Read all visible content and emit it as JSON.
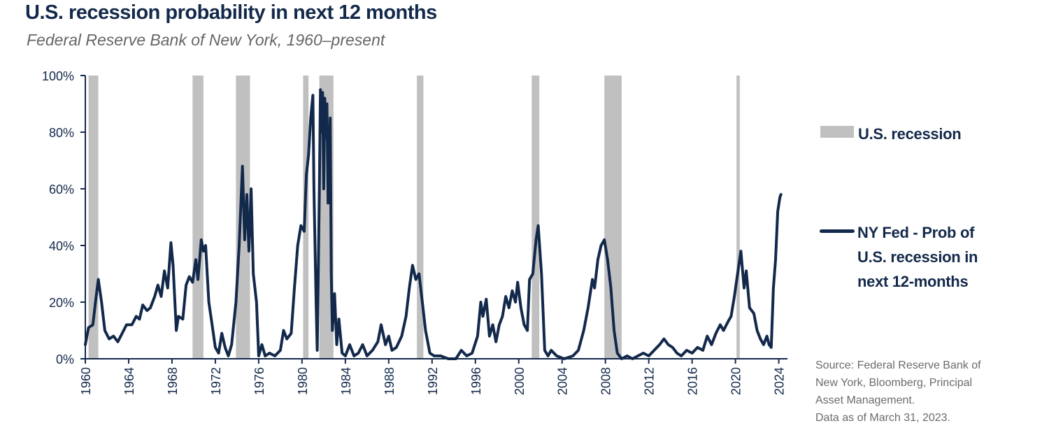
{
  "title": "U.S. recession probability in next 12 months",
  "subtitle": "Federal Reserve Bank of New York, 1960–present",
  "legend": {
    "recession_label": "U.S. recession",
    "series_label_lines": [
      "NY Fed - Prob of",
      "U.S. recession in",
      "next 12-months"
    ]
  },
  "source_lines": [
    "Source: Federal Reserve Bank of",
    "New York, Bloomberg, Principal",
    "Asset Management.",
    "Data as of March 31, 2023."
  ],
  "colors": {
    "line": "#13294b",
    "recession": "#c0c0c0",
    "text": "#13294b",
    "source_text": "#6b6b6b"
  },
  "chart_data": {
    "type": "line",
    "xlim": [
      1960,
      2024.8
    ],
    "ylim": [
      0,
      100
    ],
    "x_ticks": [
      1960,
      1964,
      1968,
      1972,
      1976,
      1980,
      1984,
      1988,
      1992,
      1996,
      2000,
      2004,
      2008,
      2012,
      2016,
      2020,
      2024
    ],
    "y_ticks": [
      0,
      20,
      40,
      60,
      80,
      100
    ],
    "y_tick_labels": [
      "0%",
      "20%",
      "40%",
      "60%",
      "80%",
      "100%"
    ],
    "grid": false,
    "legend_position": "right",
    "recessions": [
      [
        1960.3,
        1961.2
      ],
      [
        1969.9,
        1970.9
      ],
      [
        1973.9,
        1975.2
      ],
      [
        1980.1,
        1980.6
      ],
      [
        1981.6,
        1982.9
      ],
      [
        1990.6,
        1991.2
      ],
      [
        2001.2,
        2001.9
      ],
      [
        2007.9,
        2009.5
      ],
      [
        2020.1,
        2020.4
      ]
    ],
    "series": [
      {
        "name": "NY Fed - Prob of U.S. recession in next 12-months",
        "points": [
          [
            1960.0,
            5
          ],
          [
            1960.3,
            11
          ],
          [
            1960.7,
            12
          ],
          [
            1961.0,
            22
          ],
          [
            1961.2,
            28
          ],
          [
            1961.5,
            20
          ],
          [
            1961.8,
            10
          ],
          [
            1962.2,
            7
          ],
          [
            1962.6,
            8
          ],
          [
            1963.0,
            6
          ],
          [
            1963.4,
            9
          ],
          [
            1963.8,
            12
          ],
          [
            1964.3,
            12
          ],
          [
            1964.7,
            15
          ],
          [
            1965.0,
            14
          ],
          [
            1965.3,
            19
          ],
          [
            1965.7,
            17
          ],
          [
            1966.0,
            18
          ],
          [
            1966.4,
            22
          ],
          [
            1966.7,
            26
          ],
          [
            1967.0,
            22
          ],
          [
            1967.3,
            31
          ],
          [
            1967.6,
            25
          ],
          [
            1967.9,
            41
          ],
          [
            1968.1,
            33
          ],
          [
            1968.4,
            10
          ],
          [
            1968.6,
            15
          ],
          [
            1969.0,
            14
          ],
          [
            1969.3,
            26
          ],
          [
            1969.6,
            29
          ],
          [
            1969.9,
            27
          ],
          [
            1970.2,
            35
          ],
          [
            1970.4,
            28
          ],
          [
            1970.7,
            42
          ],
          [
            1970.9,
            38
          ],
          [
            1971.1,
            40
          ],
          [
            1971.4,
            20
          ],
          [
            1971.7,
            12
          ],
          [
            1972.0,
            4
          ],
          [
            1972.3,
            2
          ],
          [
            1972.6,
            9
          ],
          [
            1972.9,
            4
          ],
          [
            1973.2,
            1
          ],
          [
            1973.5,
            5
          ],
          [
            1973.9,
            20
          ],
          [
            1974.2,
            40
          ],
          [
            1974.5,
            68
          ],
          [
            1974.7,
            42
          ],
          [
            1974.9,
            58
          ],
          [
            1975.1,
            38
          ],
          [
            1975.3,
            60
          ],
          [
            1975.5,
            30
          ],
          [
            1975.8,
            20
          ],
          [
            1976.0,
            1
          ],
          [
            1976.3,
            5
          ],
          [
            1976.6,
            1
          ],
          [
            1977.0,
            2
          ],
          [
            1977.5,
            1
          ],
          [
            1978.0,
            3
          ],
          [
            1978.3,
            10
          ],
          [
            1978.6,
            7
          ],
          [
            1979.0,
            9
          ],
          [
            1979.3,
            25
          ],
          [
            1979.6,
            40
          ],
          [
            1979.9,
            47
          ],
          [
            1980.2,
            45
          ],
          [
            1980.4,
            65
          ],
          [
            1980.6,
            72
          ],
          [
            1980.8,
            85
          ],
          [
            1981.0,
            93
          ],
          [
            1981.1,
            60
          ],
          [
            1981.3,
            20
          ],
          [
            1981.4,
            3
          ],
          [
            1981.6,
            60
          ],
          [
            1981.7,
            95
          ],
          [
            1981.8,
            80
          ],
          [
            1981.9,
            94
          ],
          [
            1982.0,
            60
          ],
          [
            1982.1,
            92
          ],
          [
            1982.2,
            78
          ],
          [
            1982.3,
            90
          ],
          [
            1982.4,
            55
          ],
          [
            1982.6,
            85
          ],
          [
            1982.7,
            30
          ],
          [
            1982.8,
            10
          ],
          [
            1983.0,
            23
          ],
          [
            1983.2,
            5
          ],
          [
            1983.4,
            14
          ],
          [
            1983.7,
            2
          ],
          [
            1984.0,
            1
          ],
          [
            1984.4,
            5
          ],
          [
            1984.8,
            1
          ],
          [
            1985.2,
            2
          ],
          [
            1985.6,
            5
          ],
          [
            1986.0,
            1
          ],
          [
            1986.5,
            3
          ],
          [
            1987.0,
            6
          ],
          [
            1987.3,
            12
          ],
          [
            1987.7,
            5
          ],
          [
            1988.0,
            8
          ],
          [
            1988.3,
            3
          ],
          [
            1988.7,
            4
          ],
          [
            1989.2,
            8
          ],
          [
            1989.6,
            15
          ],
          [
            1989.9,
            25
          ],
          [
            1990.2,
            33
          ],
          [
            1990.5,
            28
          ],
          [
            1990.8,
            30
          ],
          [
            1991.1,
            20
          ],
          [
            1991.4,
            10
          ],
          [
            1991.8,
            2
          ],
          [
            1992.2,
            1
          ],
          [
            1992.8,
            1
          ],
          [
            1993.5,
            0
          ],
          [
            1994.2,
            0
          ],
          [
            1994.7,
            3
          ],
          [
            1995.2,
            1
          ],
          [
            1995.7,
            2
          ],
          [
            1996.2,
            8
          ],
          [
            1996.5,
            20
          ],
          [
            1996.7,
            15
          ],
          [
            1997.0,
            21
          ],
          [
            1997.3,
            8
          ],
          [
            1997.6,
            12
          ],
          [
            1997.9,
            6
          ],
          [
            1998.2,
            12
          ],
          [
            1998.5,
            15
          ],
          [
            1998.8,
            22
          ],
          [
            1999.1,
            18
          ],
          [
            1999.4,
            24
          ],
          [
            1999.7,
            20
          ],
          [
            1999.9,
            27
          ],
          [
            2000.2,
            18
          ],
          [
            2000.5,
            12
          ],
          [
            2000.8,
            10
          ],
          [
            2001.0,
            28
          ],
          [
            2001.3,
            30
          ],
          [
            2001.6,
            42
          ],
          [
            2001.8,
            47
          ],
          [
            2002.1,
            30
          ],
          [
            2002.4,
            3
          ],
          [
            2002.7,
            1
          ],
          [
            2003.0,
            3
          ],
          [
            2003.5,
            1
          ],
          [
            2004.2,
            0
          ],
          [
            2005.0,
            1
          ],
          [
            2005.5,
            3
          ],
          [
            2006.0,
            10
          ],
          [
            2006.4,
            18
          ],
          [
            2006.8,
            28
          ],
          [
            2007.0,
            25
          ],
          [
            2007.3,
            35
          ],
          [
            2007.6,
            40
          ],
          [
            2007.9,
            42
          ],
          [
            2008.2,
            35
          ],
          [
            2008.5,
            25
          ],
          [
            2008.8,
            10
          ],
          [
            2009.1,
            2
          ],
          [
            2009.5,
            0
          ],
          [
            2010.0,
            1
          ],
          [
            2010.5,
            0
          ],
          [
            2011.0,
            1
          ],
          [
            2011.5,
            2
          ],
          [
            2012.0,
            1
          ],
          [
            2012.5,
            3
          ],
          [
            2013.0,
            5
          ],
          [
            2013.4,
            7
          ],
          [
            2013.8,
            5
          ],
          [
            2014.2,
            4
          ],
          [
            2014.6,
            2
          ],
          [
            2015.0,
            1
          ],
          [
            2015.5,
            3
          ],
          [
            2016.0,
            2
          ],
          [
            2016.5,
            4
          ],
          [
            2017.0,
            3
          ],
          [
            2017.4,
            8
          ],
          [
            2017.8,
            5
          ],
          [
            2018.2,
            9
          ],
          [
            2018.6,
            12
          ],
          [
            2018.9,
            10
          ],
          [
            2019.3,
            13
          ],
          [
            2019.6,
            15
          ],
          [
            2019.9,
            22
          ],
          [
            2020.2,
            30
          ],
          [
            2020.5,
            38
          ],
          [
            2020.8,
            25
          ],
          [
            2021.0,
            31
          ],
          [
            2021.3,
            18
          ],
          [
            2021.7,
            16
          ],
          [
            2022.0,
            10
          ],
          [
            2022.3,
            7
          ],
          [
            2022.6,
            5
          ],
          [
            2022.9,
            8
          ],
          [
            2023.1,
            5
          ],
          [
            2023.3,
            4
          ],
          [
            2023.5,
            25
          ],
          [
            2023.7,
            35
          ],
          [
            2023.9,
            52
          ],
          [
            2024.1,
            57
          ],
          [
            2024.2,
            58
          ]
        ]
      }
    ]
  }
}
